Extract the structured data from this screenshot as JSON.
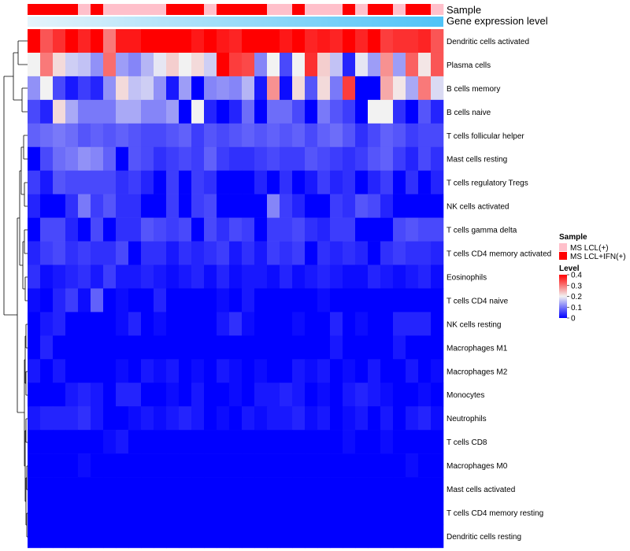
{
  "chart_data": {
    "type": "heatmap",
    "title": "",
    "annotations": {
      "sample_label": "Sample",
      "gene_label": "Gene expression level",
      "sample_groups": [
        "MS LCL+IFN(+)",
        "MS LCL+IFN(+)",
        "MS LCL+IFN(+)",
        "MS LCL+IFN(+)",
        "MS LCL(+)",
        "MS LCL+IFN(+)",
        "MS LCL(+)",
        "MS LCL(+)",
        "MS LCL(+)",
        "MS LCL(+)",
        "MS LCL(+)",
        "MS LCL+IFN(+)",
        "MS LCL+IFN(+)",
        "MS LCL+IFN(+)",
        "MS LCL(+)",
        "MS LCL+IFN(+)",
        "MS LCL+IFN(+)",
        "MS LCL+IFN(+)",
        "MS LCL+IFN(+)",
        "MS LCL(+)",
        "MS LCL(+)",
        "MS LCL+IFN(+)",
        "MS LCL(+)",
        "MS LCL(+)",
        "MS LCL(+)",
        "MS LCL+IFN(+)",
        "MS LCL(+)",
        "MS LCL+IFN(+)",
        "MS LCL+IFN(+)",
        "MS LCL(+)",
        "MS LCL+IFN(+)",
        "MS LCL+IFN(+)",
        "MS LCL(+)"
      ],
      "gene_expression_start_color": "#e6f4fb",
      "gene_expression_end_color": "#4fc3f7"
    },
    "rows": [
      "Dendritic cells activated",
      "Plasma cells",
      "B cells memory",
      "B cells naive",
      "T cells follicular helper",
      "Mast cells resting",
      "T cells regulatory  Tregs",
      "NK cells activated",
      "T cells gamma delta",
      "T cells CD4 memory activated",
      "Eosinophils",
      "T cells CD4 naive",
      "NK cells resting",
      "Macrophages M1",
      "Macrophages M2",
      "Monocytes",
      "Neutrophils",
      "T cells CD8",
      "Macrophages M0",
      "Mast cells activated",
      "T cells CD4 memory resting",
      "Dendritic cells resting"
    ],
    "values": [
      [
        0.4,
        0.33,
        0.36,
        0.4,
        0.37,
        0.4,
        0.3,
        0.38,
        0.38,
        0.4,
        0.4,
        0.4,
        0.4,
        0.38,
        0.4,
        0.38,
        0.37,
        0.4,
        0.42,
        0.42,
        0.38,
        0.4,
        0.37,
        0.38,
        0.37,
        0.4,
        0.37,
        0.4,
        0.35,
        0.36,
        0.36,
        0.37,
        0.33
      ],
      [
        0.2,
        0.3,
        0.22,
        0.17,
        0.16,
        0.12,
        0.31,
        0.13,
        0.11,
        0.15,
        0.19,
        0.23,
        0.2,
        0.22,
        0.17,
        0.4,
        0.35,
        0.34,
        0.11,
        0.2,
        0.06,
        0.2,
        0.36,
        0.23,
        0.16,
        0.03,
        0.19,
        0.13,
        0.28,
        0.13,
        0.32,
        0.21,
        0.33
      ],
      [
        0.12,
        0.2,
        0.06,
        0.02,
        0.05,
        0.03,
        0.12,
        0.22,
        0.16,
        0.17,
        0.12,
        0.02,
        0.13,
        0.0,
        0.11,
        0.12,
        0.11,
        0.15,
        0.02,
        0.28,
        0.01,
        0.22,
        0.07,
        0.22,
        0.1,
        0.35,
        0.0,
        0.0,
        0.26,
        0.21,
        0.14,
        0.3,
        0.18
      ],
      [
        0.06,
        0.03,
        0.22,
        0.14,
        0.1,
        0.1,
        0.1,
        0.14,
        0.14,
        0.11,
        0.11,
        0.13,
        0.0,
        0.2,
        0.03,
        0.0,
        0.03,
        0.09,
        0.0,
        0.09,
        0.09,
        0.06,
        0.0,
        0.1,
        0.07,
        0.05,
        0.0,
        0.2,
        0.2,
        0.04,
        0.0,
        0.07,
        0.03
      ],
      [
        0.08,
        0.09,
        0.1,
        0.09,
        0.07,
        0.08,
        0.07,
        0.08,
        0.07,
        0.06,
        0.06,
        0.07,
        0.08,
        0.05,
        0.07,
        0.06,
        0.07,
        0.08,
        0.07,
        0.08,
        0.07,
        0.08,
        0.06,
        0.08,
        0.09,
        0.07,
        0.04,
        0.06,
        0.08,
        0.07,
        0.05,
        0.06,
        0.06
      ],
      [
        0.0,
        0.06,
        0.09,
        0.1,
        0.12,
        0.11,
        0.08,
        0.0,
        0.07,
        0.06,
        0.04,
        0.05,
        0.06,
        0.05,
        0.08,
        0.05,
        0.04,
        0.04,
        0.05,
        0.06,
        0.05,
        0.05,
        0.07,
        0.06,
        0.05,
        0.04,
        0.05,
        0.07,
        0.08,
        0.05,
        0.03,
        0.06,
        0.04
      ],
      [
        0.05,
        0.02,
        0.07,
        0.06,
        0.06,
        0.06,
        0.06,
        0.04,
        0.05,
        0.03,
        0.0,
        0.05,
        0.0,
        0.05,
        0.04,
        0.0,
        0.0,
        0.0,
        0.03,
        0.0,
        0.04,
        0.0,
        0.02,
        0.05,
        0.03,
        0.04,
        0.0,
        0.03,
        0.05,
        0.0,
        0.04,
        0.0,
        0.03
      ],
      [
        0.03,
        0.0,
        0.0,
        0.04,
        0.1,
        0.05,
        0.07,
        0.04,
        0.04,
        0.0,
        0.0,
        0.05,
        0.0,
        0.05,
        0.06,
        0.0,
        0.0,
        0.0,
        0.0,
        0.11,
        0.05,
        0.03,
        0.0,
        0.0,
        0.05,
        0.04,
        0.07,
        0.06,
        0.03,
        0.0,
        0.0,
        0.0,
        0.0
      ],
      [
        0.0,
        0.06,
        0.06,
        0.03,
        0.0,
        0.06,
        0.0,
        0.04,
        0.04,
        0.07,
        0.06,
        0.05,
        0.06,
        0.0,
        0.06,
        0.04,
        0.06,
        0.05,
        0.0,
        0.05,
        0.05,
        0.06,
        0.04,
        0.03,
        0.05,
        0.05,
        0.0,
        0.0,
        0.0,
        0.06,
        0.07,
        0.06,
        0.06
      ],
      [
        0.03,
        0.05,
        0.06,
        0.04,
        0.05,
        0.04,
        0.04,
        0.06,
        0.0,
        0.04,
        0.04,
        0.02,
        0.04,
        0.03,
        0.04,
        0.05,
        0.02,
        0.04,
        0.02,
        0.05,
        0.04,
        0.05,
        0.0,
        0.04,
        0.03,
        0.04,
        0.03,
        0.0,
        0.04,
        0.05,
        0.04,
        0.04,
        0.03
      ],
      [
        0.04,
        0.01,
        0.02,
        0.03,
        0.04,
        0.02,
        0.05,
        0.02,
        0.02,
        0.03,
        0.02,
        0.01,
        0.02,
        0.03,
        0.01,
        0.03,
        0.01,
        0.02,
        0.02,
        0.01,
        0.03,
        0.01,
        0.02,
        0.03,
        0.02,
        0.01,
        0.01,
        0.03,
        0.02,
        0.01,
        0.02,
        0.03,
        0.01
      ],
      [
        0.01,
        0.0,
        0.03,
        0.05,
        0.01,
        0.08,
        0.0,
        0.01,
        0.0,
        0.0,
        0.03,
        0.0,
        0.0,
        0.0,
        0.0,
        0.01,
        0.0,
        0.02,
        0.0,
        0.0,
        0.0,
        0.0,
        0.0,
        0.01,
        0.0,
        0.0,
        0.0,
        0.0,
        0.0,
        0.0,
        0.0,
        0.0,
        0.0
      ],
      [
        0.0,
        0.02,
        0.03,
        0.0,
        0.0,
        0.0,
        0.0,
        0.01,
        0.03,
        0.0,
        0.01,
        0.0,
        0.0,
        0.0,
        0.0,
        0.02,
        0.04,
        0.01,
        0.0,
        0.0,
        0.0,
        0.01,
        0.0,
        0.0,
        0.03,
        0.0,
        0.01,
        0.0,
        0.0,
        0.03,
        0.03,
        0.03,
        0.0
      ],
      [
        0.0,
        0.03,
        0.0,
        0.0,
        0.0,
        0.0,
        0.0,
        0.0,
        0.0,
        0.0,
        0.0,
        0.0,
        0.0,
        0.0,
        0.0,
        0.0,
        0.0,
        0.0,
        0.0,
        0.0,
        0.0,
        0.0,
        0.0,
        0.0,
        0.02,
        0.0,
        0.0,
        0.0,
        0.0,
        0.02,
        0.0,
        0.0,
        0.0
      ],
      [
        0.02,
        0.0,
        0.02,
        0.0,
        0.0,
        0.0,
        0.0,
        0.01,
        0.0,
        0.02,
        0.01,
        0.02,
        0.0,
        0.01,
        0.0,
        0.02,
        0.01,
        0.0,
        0.01,
        0.0,
        0.0,
        0.02,
        0.01,
        0.02,
        0.0,
        0.01,
        0.0,
        0.02,
        0.0,
        0.0,
        0.02,
        0.0,
        0.01
      ],
      [
        0.0,
        0.0,
        0.0,
        0.02,
        0.03,
        0.02,
        0.0,
        0.03,
        0.03,
        0.0,
        0.0,
        0.01,
        0.0,
        0.02,
        0.0,
        0.0,
        0.01,
        0.0,
        0.02,
        0.02,
        0.03,
        0.02,
        0.0,
        0.01,
        0.0,
        0.02,
        0.03,
        0.02,
        0.01,
        0.0,
        0.0,
        0.01,
        0.0
      ],
      [
        0.02,
        0.03,
        0.03,
        0.03,
        0.04,
        0.02,
        0.0,
        0.0,
        0.01,
        0.02,
        0.01,
        0.02,
        0.03,
        0.02,
        0.0,
        0.01,
        0.0,
        0.02,
        0.01,
        0.02,
        0.02,
        0.03,
        0.01,
        0.02,
        0.0,
        0.01,
        0.02,
        0.0,
        0.02,
        0.0,
        0.02,
        0.03,
        0.01
      ],
      [
        0.0,
        0.0,
        0.0,
        0.0,
        0.0,
        0.0,
        0.01,
        0.02,
        0.0,
        0.0,
        0.0,
        0.0,
        0.0,
        0.0,
        0.0,
        0.0,
        0.0,
        0.0,
        0.0,
        0.0,
        0.0,
        0.0,
        0.0,
        0.0,
        0.0,
        0.01,
        0.0,
        0.0,
        0.01,
        0.0,
        0.0,
        0.0,
        0.0
      ],
      [
        0.0,
        0.0,
        0.0,
        0.0,
        0.01,
        0.0,
        0.0,
        0.0,
        0.0,
        0.0,
        0.0,
        0.0,
        0.0,
        0.0,
        0.0,
        0.0,
        0.0,
        0.0,
        0.0,
        0.0,
        0.0,
        0.0,
        0.0,
        0.0,
        0.0,
        0.0,
        0.0,
        0.0,
        0.0,
        0.0,
        0.01,
        0.0,
        0.0
      ],
      [
        0.0,
        0.0,
        0.0,
        0.0,
        0.0,
        0.0,
        0.0,
        0.0,
        0.0,
        0.0,
        0.0,
        0.0,
        0.0,
        0.0,
        0.0,
        0.0,
        0.0,
        0.0,
        0.0,
        0.0,
        0.0,
        0.0,
        0.0,
        0.0,
        0.0,
        0.0,
        0.0,
        0.0,
        0.0,
        0.0,
        0.0,
        0.0,
        0.0
      ],
      [
        0.0,
        0.0,
        0.0,
        0.0,
        0.0,
        0.0,
        0.0,
        0.0,
        0.0,
        0.0,
        0.0,
        0.0,
        0.0,
        0.0,
        0.0,
        0.0,
        0.0,
        0.0,
        0.0,
        0.0,
        0.0,
        0.0,
        0.0,
        0.0,
        0.0,
        0.0,
        0.0,
        0.0,
        0.0,
        0.0,
        0.0,
        0.0,
        0.0
      ],
      [
        0.0,
        0.0,
        0.0,
        0.0,
        0.0,
        0.0,
        0.0,
        0.0,
        0.0,
        0.0,
        0.0,
        0.0,
        0.0,
        0.0,
        0.0,
        0.0,
        0.0,
        0.0,
        0.0,
        0.0,
        0.0,
        0.0,
        0.0,
        0.0,
        0.0,
        0.0,
        0.0,
        0.0,
        0.0,
        0.0,
        0.0,
        0.0,
        0.0
      ]
    ],
    "color_scale": {
      "stops": [
        {
          "value": 0.0,
          "color": "#0000ff"
        },
        {
          "value": 0.2,
          "color": "#f2f2f2"
        },
        {
          "value": 0.4,
          "color": "#ff0000"
        }
      ],
      "range": [
        0,
        0.4
      ]
    },
    "legend": {
      "position": "right",
      "sample_title": "Sample",
      "sample_items": [
        {
          "label": "MS LCL(+)",
          "color": "#ffc0cb"
        },
        {
          "label": "MS LCL+IFN(+)",
          "color": "#ff0000"
        }
      ],
      "level_title": "Level",
      "level_ticks": [
        "0.4",
        "0.3",
        "0.2",
        "0.1",
        "0"
      ],
      "level_tick_values": [
        0.4,
        0.3,
        0.2,
        0.1,
        0
      ]
    }
  }
}
